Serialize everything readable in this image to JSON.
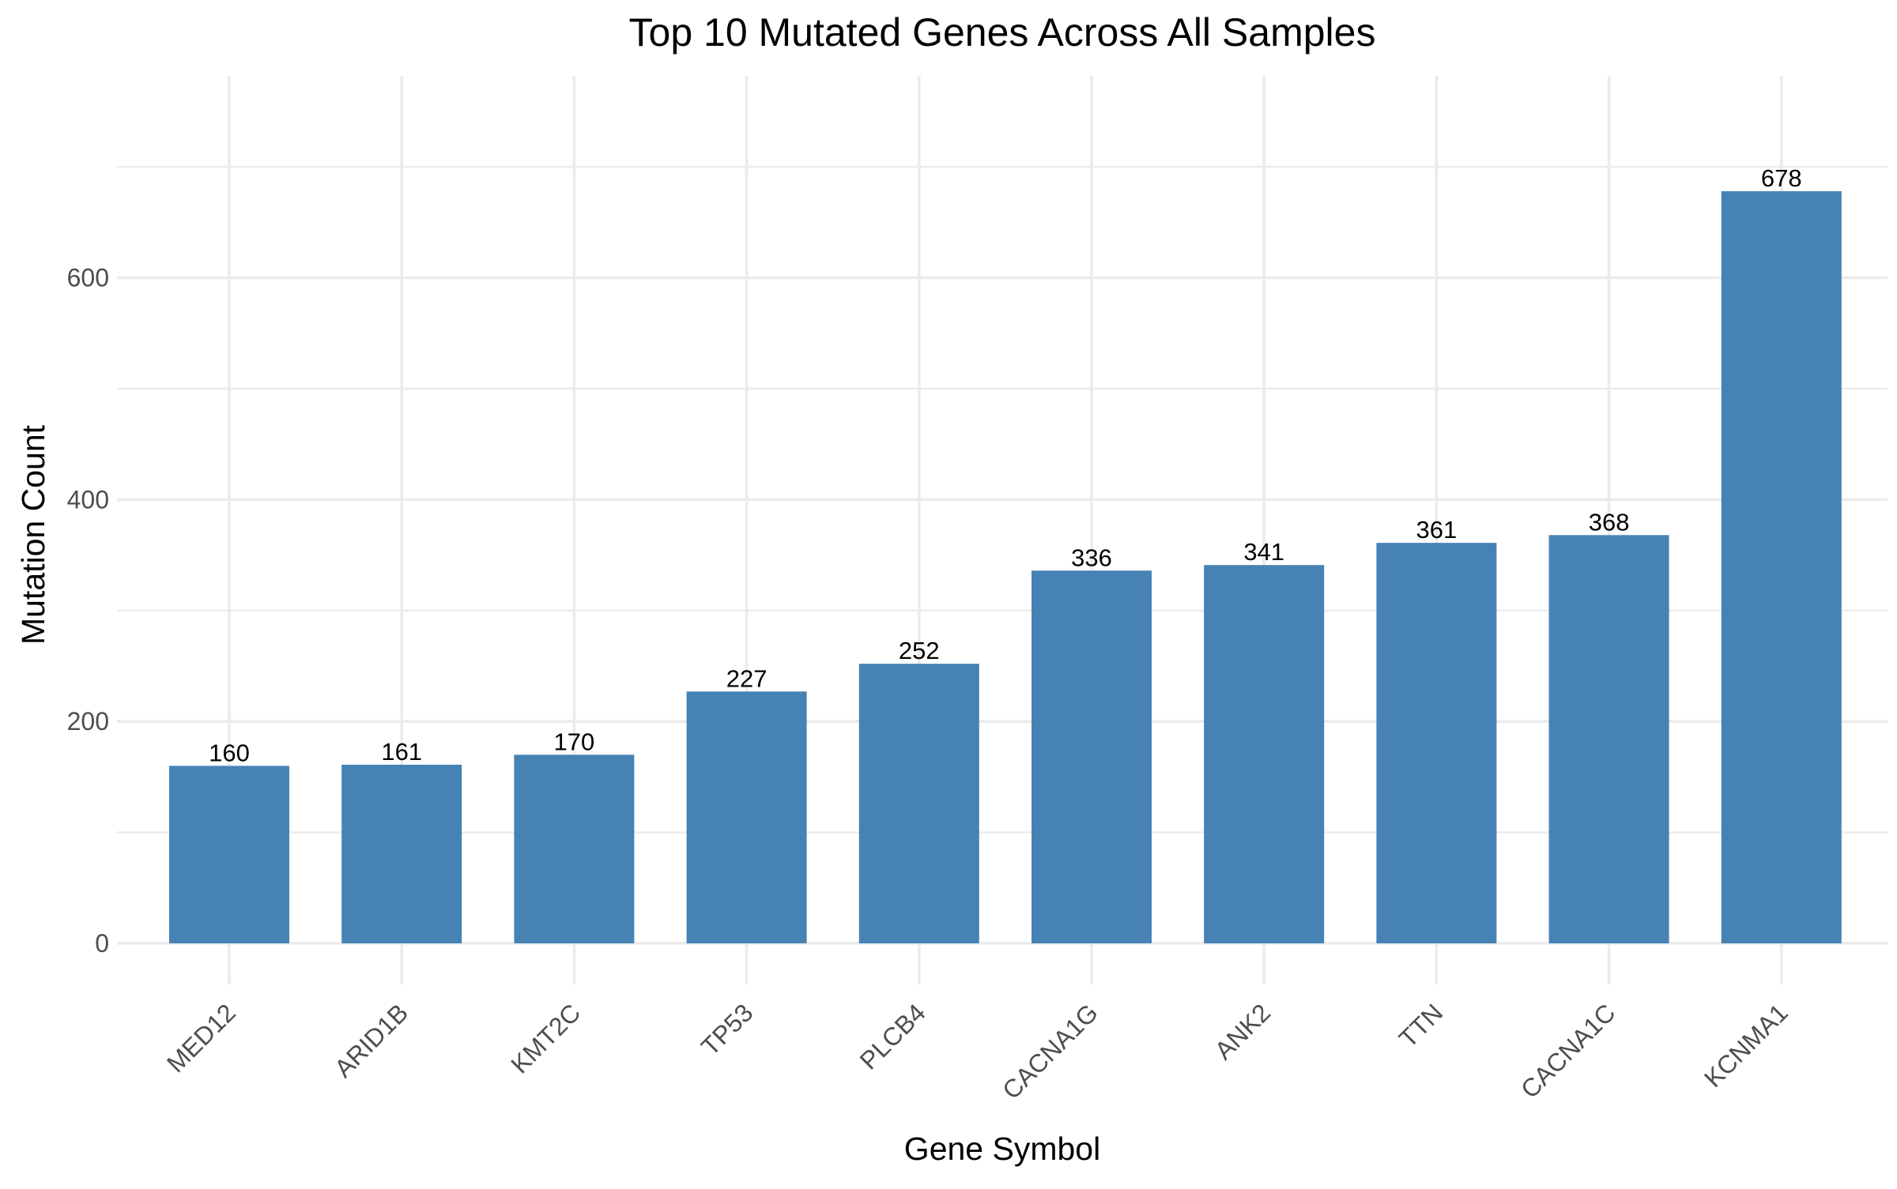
{
  "chart_data": {
    "type": "bar",
    "title": "Top 10 Mutated Genes Across All Samples",
    "xlabel": "Gene Symbol",
    "ylabel": "Mutation Count",
    "categories": [
      "MED12",
      "ARID1B",
      "KMT2C",
      "TP53",
      "PLCB4",
      "CACNA1G",
      "ANK2",
      "TTN",
      "CACNA1C",
      "KCNMA1"
    ],
    "values": [
      160,
      161,
      170,
      227,
      252,
      336,
      341,
      361,
      368,
      678
    ],
    "data_labels": [
      "160",
      "161",
      "170",
      "227",
      "252",
      "336",
      "341",
      "361",
      "368",
      "678"
    ],
    "yticks": [
      0,
      200,
      400,
      600
    ],
    "ylim": [
      -37,
      782
    ],
    "grid": true,
    "legend": "none",
    "bar_color": "#4682B4",
    "x_tick_rotation": -45
  }
}
